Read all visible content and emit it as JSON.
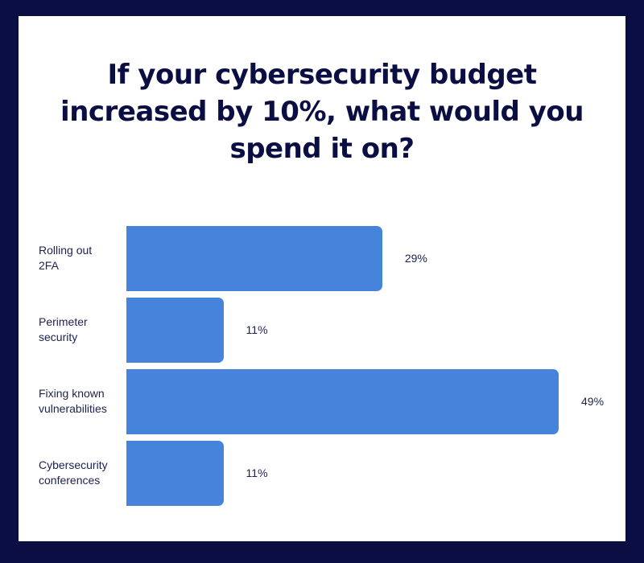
{
  "chart_data": {
    "type": "bar",
    "orientation": "horizontal",
    "title": "If your cybersecurity budget increased by 10%, what would you spend it on?",
    "title_lines": [
      "If your cybersecurity budget",
      "increased by 10%, what would you",
      "spend it on?"
    ],
    "categories": [
      [
        "Rolling out",
        "2FA"
      ],
      [
        "Perimeter",
        "security"
      ],
      [
        "Fixing known",
        "vulnerabilities"
      ],
      [
        "Cybersecurity",
        "conferences"
      ]
    ],
    "values": [
      29,
      11,
      49,
      11
    ],
    "value_labels": [
      "29%",
      "11%",
      "49%",
      "11%"
    ],
    "xlabel": "",
    "ylabel": "",
    "xlim": [
      0,
      49
    ],
    "grid": false,
    "colors": {
      "bar": "#4684db",
      "frame": "#0b0e42",
      "text": "#1e2050"
    }
  }
}
